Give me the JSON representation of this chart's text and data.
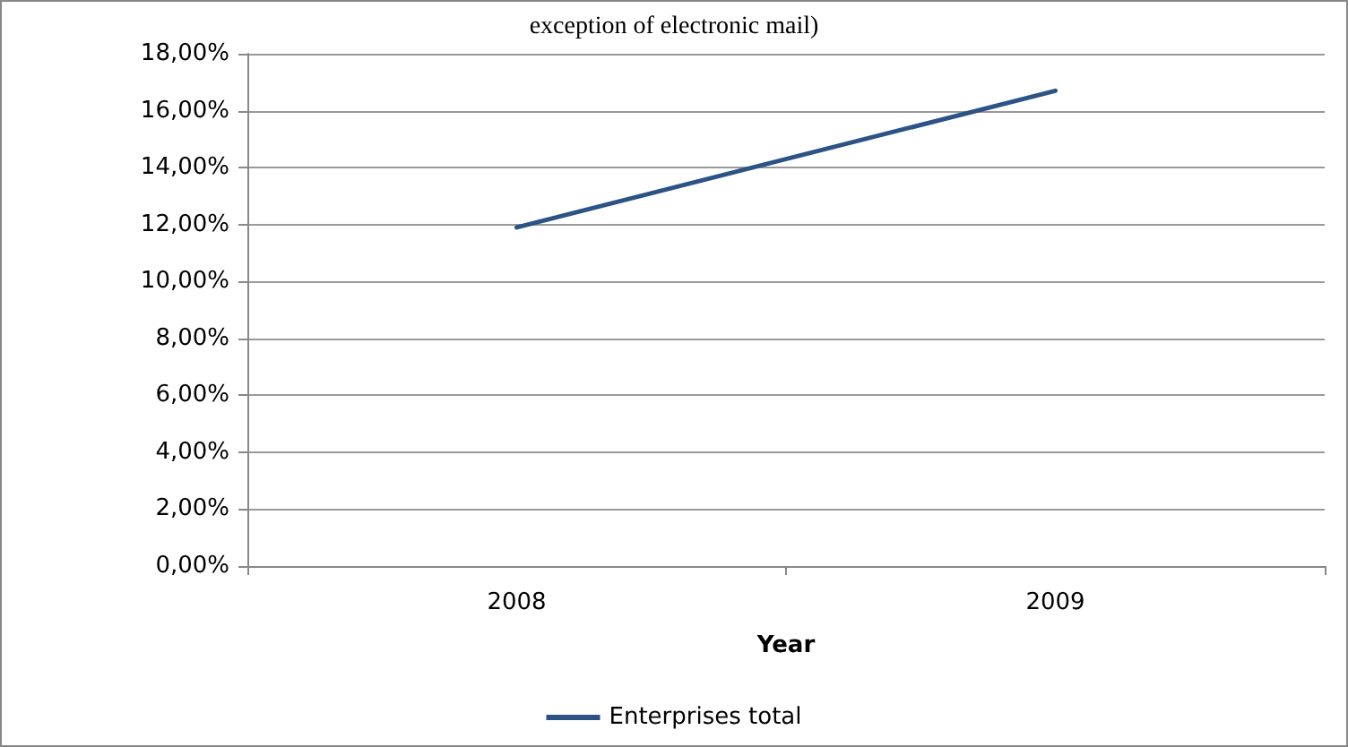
{
  "chart_data": {
    "type": "line",
    "title": "exception of electronic mail)",
    "xlabel": "Year",
    "categories": [
      "2008",
      "2009"
    ],
    "series": [
      {
        "name": "Enterprises total",
        "color": "#2b5385",
        "values": [
          11.9,
          16.7
        ]
      }
    ],
    "ylim": [
      0,
      18
    ],
    "yticks": [
      {
        "value": 0,
        "label": "0,00%"
      },
      {
        "value": 2,
        "label": "2,00%"
      },
      {
        "value": 4,
        "label": "4,00%"
      },
      {
        "value": 6,
        "label": "6,00%"
      },
      {
        "value": 8,
        "label": "8,00%"
      },
      {
        "value": 10,
        "label": "10,00%"
      },
      {
        "value": 12,
        "label": "12,00%"
      },
      {
        "value": 14,
        "label": "14,00%"
      },
      {
        "value": 16,
        "label": "16,00%"
      },
      {
        "value": 18,
        "label": "18,00%"
      }
    ],
    "grid": "y",
    "legend": "bottom",
    "marker": "none",
    "line_style": "solid"
  }
}
